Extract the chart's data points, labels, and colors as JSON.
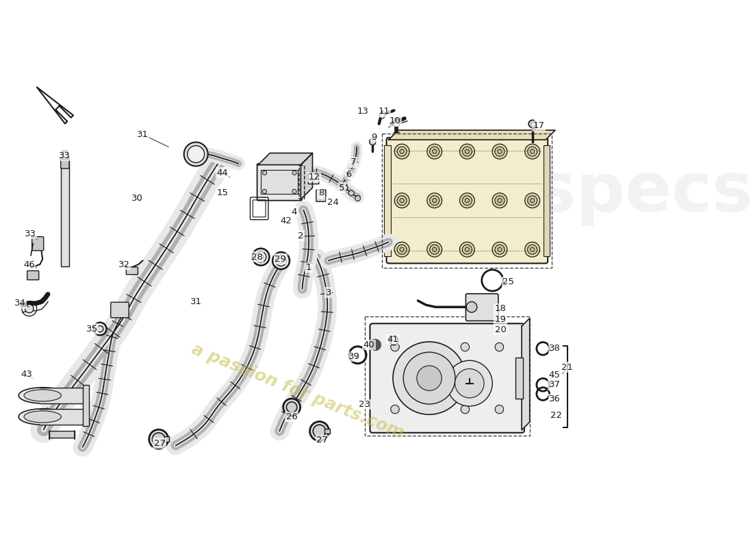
{
  "background_color": "#ffffff",
  "watermark_text": "a passion for parts.com",
  "watermark_color": "#c8b840",
  "watermark_opacity": 0.5,
  "line_color": "#1a1a1a",
  "part_number_fontsize": 9.5,
  "leader_color": "#222222",
  "part_labels": [
    [
      "1",
      580,
      388,
      590,
      390
    ],
    [
      "2",
      565,
      328,
      572,
      333
    ],
    [
      "3",
      617,
      435,
      620,
      440
    ],
    [
      "4",
      553,
      283,
      558,
      290
    ],
    [
      "5",
      642,
      238,
      638,
      243
    ],
    [
      "6",
      655,
      213,
      650,
      218
    ],
    [
      "7",
      664,
      190,
      660,
      195
    ],
    [
      "8",
      603,
      248,
      600,
      253
    ],
    [
      "9",
      703,
      143,
      697,
      148
    ],
    [
      "10",
      742,
      113,
      738,
      120
    ],
    [
      "11",
      722,
      95,
      718,
      102
    ],
    [
      "12",
      590,
      218,
      587,
      223
    ],
    [
      "13",
      682,
      95,
      678,
      102
    ],
    [
      "15",
      418,
      248,
      430,
      255
    ],
    [
      "17",
      1012,
      122,
      1000,
      130
    ],
    [
      "18",
      940,
      465,
      930,
      470
    ],
    [
      "19",
      940,
      485,
      930,
      490
    ],
    [
      "20",
      940,
      505,
      930,
      510
    ],
    [
      "21",
      1065,
      575,
      1055,
      590
    ],
    [
      "22",
      1045,
      665,
      1035,
      668
    ],
    [
      "23",
      685,
      645,
      695,
      640
    ],
    [
      "24",
      625,
      265,
      620,
      272
    ],
    [
      "25",
      955,
      415,
      945,
      425
    ],
    [
      "26",
      548,
      668,
      545,
      658
    ],
    [
      "27",
      300,
      718,
      310,
      712
    ],
    [
      "27",
      605,
      712,
      598,
      700
    ],
    [
      "28",
      483,
      368,
      490,
      375
    ],
    [
      "29",
      527,
      372,
      530,
      380
    ],
    [
      "30",
      258,
      258,
      268,
      265
    ],
    [
      "31",
      268,
      138,
      320,
      163
    ],
    [
      "31",
      368,
      452,
      362,
      460
    ],
    [
      "32",
      233,
      382,
      245,
      390
    ],
    [
      "33",
      122,
      178,
      130,
      188
    ],
    [
      "33",
      57,
      325,
      72,
      338
    ],
    [
      "34",
      38,
      455,
      58,
      463
    ],
    [
      "35",
      173,
      503,
      183,
      510
    ],
    [
      "36",
      1042,
      635,
      1032,
      640
    ],
    [
      "37",
      1042,
      608,
      1032,
      613
    ],
    [
      "38",
      1042,
      540,
      1032,
      548
    ],
    [
      "39",
      665,
      555,
      678,
      560
    ],
    [
      "40",
      693,
      533,
      705,
      540
    ],
    [
      "41",
      738,
      523,
      750,
      530
    ],
    [
      "42",
      537,
      300,
      543,
      308
    ],
    [
      "43",
      50,
      588,
      65,
      598
    ],
    [
      "44",
      418,
      210,
      435,
      220
    ],
    [
      "45",
      1042,
      590,
      1032,
      598
    ],
    [
      "46",
      55,
      382,
      72,
      390
    ]
  ]
}
